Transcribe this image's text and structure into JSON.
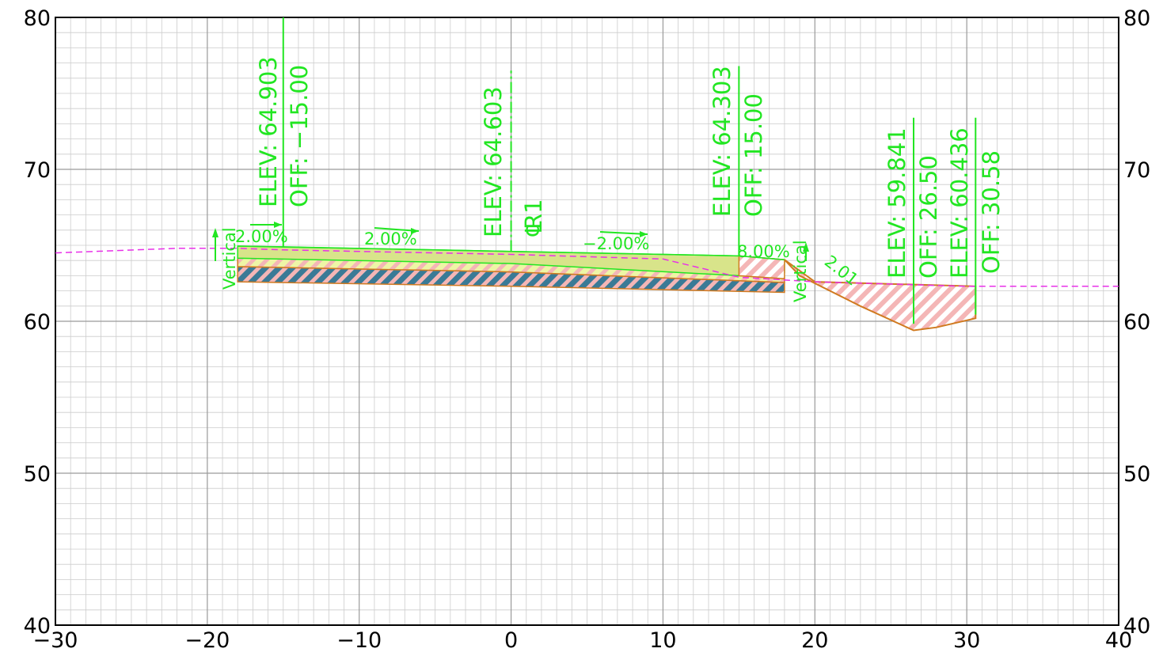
{
  "view": {
    "title": "",
    "x_range": [
      -30,
      40
    ],
    "y_range": [
      40,
      80
    ]
  },
  "axes": {
    "x_ticks": [
      -30,
      -20,
      -10,
      0,
      10,
      20,
      30,
      40
    ],
    "y_ticks": [
      40,
      50,
      60,
      70,
      80
    ],
    "x_tick_labels": [
      "−30",
      "−20",
      "−10",
      "0",
      "10",
      "20",
      "30",
      "40"
    ],
    "y_tick_labels": [
      "40",
      "50",
      "60",
      "70",
      "80"
    ]
  },
  "grid": {
    "major_step": 10,
    "minor_step": 1
  },
  "colors": {
    "grid_minor": "#cccccc",
    "grid_major": "#9a9a9a",
    "annotation": "#22e622",
    "ground": "#e830e8",
    "hatch_pink": "#f4b6b6",
    "hatch_blue": "#3a7a96",
    "fill_yellow": "#eef5a6",
    "pavement": "#d8e48a",
    "outline_orange": "#d07a20"
  },
  "annotations": {
    "left_edge": {
      "elev_label": "ELEV: 64.903",
      "off_label": "OFF: −15.00"
    },
    "centerline": {
      "elev_label": "ELEV: 64.603",
      "name": "R1",
      "symbol": "℄"
    },
    "right_edge": {
      "elev_label": "ELEV: 64.303",
      "off_label": "OFF: 15.00"
    },
    "ditch_bottom": {
      "elev_label": "ELEV: 59.841",
      "off_label": "OFF: 26.50"
    },
    "daylight": {
      "elev_label": "ELEV: 60.436",
      "off_label": "OFF: 30.58"
    },
    "slopes": {
      "left_shoulder": "2.00%",
      "left_lane": "2.00%",
      "right_lane": "−2.00%",
      "right_shoulder": "8.00%",
      "foreslope": "2.01"
    },
    "vertical_left": "Vertical",
    "vertical_right": "Vertical"
  },
  "chart_data": {
    "type": "cross-section",
    "x_range": [
      -30,
      40
    ],
    "y_range": [
      40,
      80
    ],
    "existing_ground": [
      [
        -30,
        64.5
      ],
      [
        -22,
        64.8
      ],
      [
        -18,
        64.8
      ],
      [
        -15,
        64.7
      ],
      [
        0,
        64.4
      ],
      [
        10,
        64.1
      ],
      [
        15,
        62.9
      ],
      [
        20,
        62.6
      ],
      [
        30,
        62.3
      ],
      [
        40,
        62.3
      ]
    ],
    "finished_grade": [
      [
        -18,
        64.95
      ],
      [
        -15,
        64.9
      ],
      [
        0,
        64.6
      ],
      [
        15,
        64.3
      ],
      [
        18,
        64.05
      ],
      [
        26.5,
        59.84
      ],
      [
        30.58,
        60.44
      ]
    ],
    "subbase_bottom": [
      [
        -18,
        62.6
      ],
      [
        0,
        62.3
      ],
      [
        18,
        61.9
      ]
    ],
    "points": [
      {
        "label": "ELEV: 64.903",
        "offset": -15.0,
        "elev": 64.903
      },
      {
        "label": "ELEV: 64.603",
        "offset": 0.0,
        "elev": 64.603
      },
      {
        "label": "ELEV: 64.303",
        "offset": 15.0,
        "elev": 64.303
      },
      {
        "label": "ELEV: 59.841",
        "offset": 26.5,
        "elev": 59.841
      },
      {
        "label": "ELEV: 60.436",
        "offset": 30.58,
        "elev": 60.436
      }
    ]
  }
}
